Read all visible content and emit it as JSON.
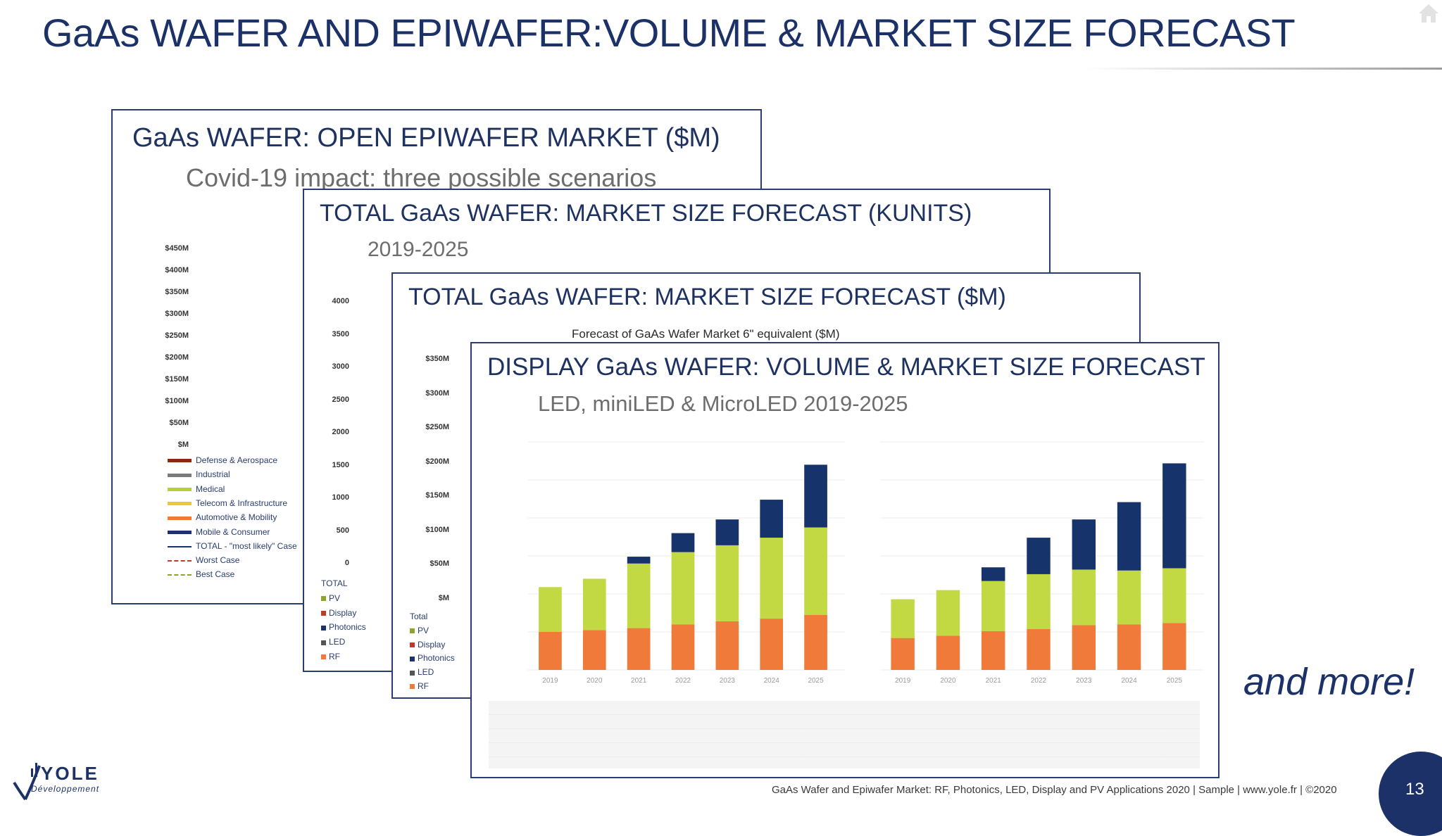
{
  "slide": {
    "title": "GaAs WAFER AND EPIWAFER:VOLUME & MARKET SIZE FORECAST",
    "and_more": "and more!",
    "footer": "GaAs Wafer and Epiwafer Market: RF, Photonics, LED, Display and PV Applications 2020 | Sample | www.yole.fr | ©2020",
    "page_number": "13",
    "logo_main": "YOLE",
    "logo_sub": "Développement"
  },
  "cards": {
    "c1": {
      "title": "GaAs WAFER:  OPEN EPIWAFER MARKET ($M)",
      "subtitle": "Covid-19 impact: three possible scenarios",
      "axis": [
        "$450M",
        "$400M",
        "$350M",
        "$300M",
        "$250M",
        "$200M",
        "$150M",
        "$100M",
        "$50M",
        "$M"
      ],
      "legend": [
        "Defense & Aerospace",
        "Industrial",
        "Medical",
        "Telecom & Infrastructure",
        "Automotive & Mobility",
        "Mobile & Consumer",
        "TOTAL - \"most likely\" Case",
        "Worst Case",
        "Best Case"
      ]
    },
    "c2": {
      "title": "TOTAL GaAs WAFER:  MARKET SIZE FORECAST (KUNITS)",
      "subtitle": "2019-2025",
      "axis": [
        "4000",
        "3500",
        "3000",
        "2500",
        "2000",
        "1500",
        "1000",
        "500",
        "0"
      ],
      "legend": [
        "TOTAL",
        "PV",
        "Display",
        "Photonics",
        "LED",
        "RF"
      ]
    },
    "c3": {
      "title": "TOTAL GaAs WAFER: MARKET SIZE FORECAST ($M)",
      "subtitle": "Forecast of GaAs Wafer Market 6\" equivalent ($M)",
      "axis": [
        "$350M",
        "$300M",
        "$250M",
        "$200M",
        "$150M",
        "$100M",
        "$50M",
        "$M"
      ],
      "legend": [
        "Total",
        "PV",
        "Display",
        "Photonics",
        "LED",
        "RF"
      ]
    },
    "c4": {
      "title": "DISPLAY GaAs WAFER:  VOLUME & MARKET SIZE FORECAST",
      "subtitle": "LED, miniLED & MicroLED 2019-2025"
    }
  },
  "colors": {
    "navy": "#1b3168",
    "orange": "#ef7a3a",
    "lime": "#c2d944",
    "darkblue": "#16336b",
    "defense": "#8b2a12",
    "industrial": "#7a7a7a",
    "medical": "#b6cf3a",
    "telecom": "#f5c23a",
    "automotive": "#ef7a3a",
    "mobile": "#1b3168"
  },
  "chart_data": [
    {
      "type": "bar",
      "categories": [
        "2019",
        "2020",
        "2021",
        "2022",
        "2023",
        "2024",
        "2025"
      ],
      "series": [
        {
          "name": "",
          "values": [
            100,
            105,
            110,
            120,
            128,
            135,
            145
          ]
        },
        {
          "name": "",
          "values": [
            118,
            135,
            170,
            190,
            200,
            213,
            230
          ]
        },
        {
          "name": "",
          "values": [
            0,
            0,
            18,
            50,
            68,
            100,
            165
          ]
        }
      ],
      "ylim": [
        0,
        600
      ]
    },
    {
      "type": "bar",
      "categories": [
        "2019",
        "2020",
        "2021",
        "2022",
        "2023",
        "2024",
        "2025"
      ],
      "series": [
        {
          "name": "",
          "values": [
            70,
            75,
            85,
            90,
            98,
            100,
            103
          ]
        },
        {
          "name": "",
          "values": [
            85,
            100,
            110,
            120,
            122,
            118,
            120
          ]
        },
        {
          "name": "",
          "values": [
            0,
            0,
            30,
            80,
            110,
            150,
            230
          ]
        }
      ],
      "ylim": [
        0,
        500
      ]
    }
  ]
}
